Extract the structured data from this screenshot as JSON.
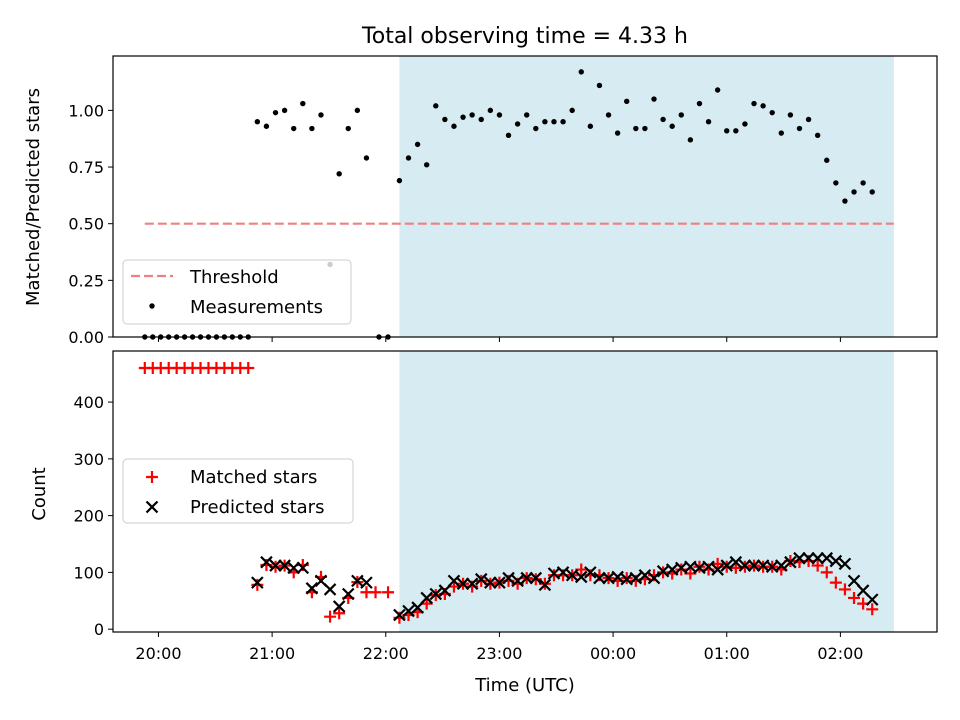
{
  "colors": {
    "shade": "#add8e6",
    "threshold": "#f08080",
    "matched": "#ff0000",
    "predicted": "#000000",
    "measurement": "#000000"
  },
  "chart_data": [
    {
      "type": "scatter",
      "title": "Total observing time = 4.33 h",
      "ylabel": "Matched/Predicted stars",
      "xlim": [
        -0.4,
        6.85
      ],
      "ylim": [
        0.0,
        1.24
      ],
      "yticks": [
        "0.00",
        "0.25",
        "0.50",
        "0.75",
        "1.00"
      ],
      "shaded_span_x": [
        2.12,
        6.47
      ],
      "threshold": {
        "name": "Threshold",
        "y": 0.5,
        "x": [
          -0.12,
          6.47
        ]
      },
      "legend": "lower-left",
      "series": [
        {
          "name": "Measurements",
          "points": [
            [
              -0.12,
              0
            ],
            [
              -0.05,
              0
            ],
            [
              0.02,
              0
            ],
            [
              0.09,
              0
            ],
            [
              0.16,
              0
            ],
            [
              0.23,
              0
            ],
            [
              0.3,
              0
            ],
            [
              0.37,
              0
            ],
            [
              0.44,
              0
            ],
            [
              0.51,
              0
            ],
            [
              0.58,
              0
            ],
            [
              0.65,
              0
            ],
            [
              0.72,
              0
            ],
            [
              0.79,
              0
            ],
            [
              0.87,
              0.95
            ],
            [
              0.95,
              0.93
            ],
            [
              1.03,
              0.99
            ],
            [
              1.11,
              1.0
            ],
            [
              1.19,
              0.92
            ],
            [
              1.27,
              1.03
            ],
            [
              1.35,
              0.92
            ],
            [
              1.43,
              0.98
            ],
            [
              1.51,
              0.32
            ],
            [
              1.59,
              0.72
            ],
            [
              1.67,
              0.92
            ],
            [
              1.75,
              1.0
            ],
            [
              1.83,
              0.79
            ],
            [
              1.94,
              0
            ],
            [
              2.02,
              0
            ],
            [
              2.12,
              0.69
            ],
            [
              2.2,
              0.79
            ],
            [
              2.28,
              0.85
            ],
            [
              2.36,
              0.76
            ],
            [
              2.44,
              1.02
            ],
            [
              2.52,
              0.96
            ],
            [
              2.6,
              0.93
            ],
            [
              2.68,
              0.97
            ],
            [
              2.76,
              0.98
            ],
            [
              2.84,
              0.96
            ],
            [
              2.92,
              1.0
            ],
            [
              3.0,
              0.98
            ],
            [
              3.08,
              0.89
            ],
            [
              3.16,
              0.94
            ],
            [
              3.24,
              0.98
            ],
            [
              3.32,
              0.92
            ],
            [
              3.4,
              0.95
            ],
            [
              3.48,
              0.95
            ],
            [
              3.56,
              0.95
            ],
            [
              3.64,
              1.0
            ],
            [
              3.72,
              1.17
            ],
            [
              3.8,
              0.93
            ],
            [
              3.88,
              1.11
            ],
            [
              3.96,
              0.98
            ],
            [
              4.04,
              0.9
            ],
            [
              4.12,
              1.04
            ],
            [
              4.2,
              0.92
            ],
            [
              4.28,
              0.92
            ],
            [
              4.36,
              1.05
            ],
            [
              4.44,
              0.96
            ],
            [
              4.52,
              0.93
            ],
            [
              4.6,
              0.98
            ],
            [
              4.68,
              0.87
            ],
            [
              4.76,
              1.03
            ],
            [
              4.84,
              0.95
            ],
            [
              4.92,
              1.09
            ],
            [
              5.0,
              0.91
            ],
            [
              5.08,
              0.91
            ],
            [
              5.16,
              0.94
            ],
            [
              5.24,
              1.03
            ],
            [
              5.32,
              1.02
            ],
            [
              5.4,
              0.99
            ],
            [
              5.48,
              0.9
            ],
            [
              5.56,
              0.98
            ],
            [
              5.64,
              0.92
            ],
            [
              5.72,
              0.96
            ],
            [
              5.8,
              0.89
            ],
            [
              5.88,
              0.78
            ],
            [
              5.96,
              0.68
            ],
            [
              6.04,
              0.6
            ],
            [
              6.12,
              0.64
            ],
            [
              6.2,
              0.68
            ],
            [
              6.28,
              0.64
            ]
          ]
        }
      ]
    },
    {
      "type": "scatter",
      "ylabel": "Count",
      "xlabel": "Time (UTC)",
      "xlim": [
        -0.4,
        6.85
      ],
      "ylim": [
        -5,
        490
      ],
      "yticks": [
        "0",
        "100",
        "200",
        "300",
        "400"
      ],
      "xtick_values": [
        0,
        1,
        2,
        3,
        4,
        5,
        6
      ],
      "categories": [
        "20:00",
        "21:00",
        "22:00",
        "23:00",
        "00:00",
        "01:00",
        "02:00"
      ],
      "shaded_span_x": [
        2.12,
        6.47
      ],
      "legend": "center-left",
      "series": [
        {
          "name": "Matched stars",
          "points": [
            [
              -0.12,
              460
            ],
            [
              -0.05,
              460
            ],
            [
              0.02,
              460
            ],
            [
              0.09,
              460
            ],
            [
              0.16,
              460
            ],
            [
              0.23,
              460
            ],
            [
              0.3,
              460
            ],
            [
              0.37,
              460
            ],
            [
              0.44,
              460
            ],
            [
              0.51,
              460
            ],
            [
              0.58,
              460
            ],
            [
              0.65,
              460
            ],
            [
              0.72,
              460
            ],
            [
              0.79,
              460
            ],
            [
              0.87,
              78
            ],
            [
              0.95,
              113
            ],
            [
              1.03,
              110
            ],
            [
              1.11,
              112
            ],
            [
              1.19,
              100
            ],
            [
              1.27,
              113
            ],
            [
              1.35,
              65
            ],
            [
              1.43,
              92
            ],
            [
              1.51,
              22
            ],
            [
              1.59,
              28
            ],
            [
              1.67,
              55
            ],
            [
              1.75,
              83
            ],
            [
              1.83,
              65
            ],
            [
              1.91,
              65
            ],
            [
              2.02,
              65
            ],
            [
              2.12,
              20
            ],
            [
              2.2,
              25
            ],
            [
              2.28,
              30
            ],
            [
              2.36,
              45
            ],
            [
              2.44,
              60
            ],
            [
              2.52,
              62
            ],
            [
              2.6,
              75
            ],
            [
              2.68,
              80
            ],
            [
              2.76,
              75
            ],
            [
              2.84,
              85
            ],
            [
              2.92,
              80
            ],
            [
              3.0,
              82
            ],
            [
              3.08,
              85
            ],
            [
              3.16,
              80
            ],
            [
              3.24,
              90
            ],
            [
              3.32,
              88
            ],
            [
              3.4,
              80
            ],
            [
              3.48,
              95
            ],
            [
              3.56,
              95
            ],
            [
              3.64,
              95
            ],
            [
              3.72,
              105
            ],
            [
              3.8,
              95
            ],
            [
              3.88,
              95
            ],
            [
              3.96,
              90
            ],
            [
              4.04,
              85
            ],
            [
              4.12,
              90
            ],
            [
              4.2,
              85
            ],
            [
              4.28,
              88
            ],
            [
              4.36,
              95
            ],
            [
              4.44,
              100
            ],
            [
              4.52,
              98
            ],
            [
              4.6,
              105
            ],
            [
              4.68,
              98
            ],
            [
              4.76,
              110
            ],
            [
              4.84,
              105
            ],
            [
              4.92,
              115
            ],
            [
              5.0,
              110
            ],
            [
              5.08,
              108
            ],
            [
              5.16,
              110
            ],
            [
              5.24,
              112
            ],
            [
              5.32,
              110
            ],
            [
              5.4,
              110
            ],
            [
              5.48,
              105
            ],
            [
              5.56,
              120
            ],
            [
              5.64,
              118
            ],
            [
              5.72,
              120
            ],
            [
              5.8,
              112
            ],
            [
              5.88,
              100
            ],
            [
              5.96,
              82
            ],
            [
              6.04,
              70
            ],
            [
              6.12,
              55
            ],
            [
              6.2,
              45
            ],
            [
              6.28,
              35
            ]
          ]
        },
        {
          "name": "Predicted stars",
          "points": [
            [
              0.87,
              82
            ],
            [
              0.95,
              118
            ],
            [
              1.03,
              112
            ],
            [
              1.11,
              112
            ],
            [
              1.19,
              108
            ],
            [
              1.27,
              108
            ],
            [
              1.35,
              72
            ],
            [
              1.43,
              85
            ],
            [
              1.51,
              70
            ],
            [
              1.59,
              40
            ],
            [
              1.67,
              62
            ],
            [
              1.75,
              85
            ],
            [
              1.83,
              82
            ],
            [
              2.12,
              25
            ],
            [
              2.2,
              32
            ],
            [
              2.28,
              38
            ],
            [
              2.36,
              55
            ],
            [
              2.44,
              62
            ],
            [
              2.52,
              68
            ],
            [
              2.6,
              85
            ],
            [
              2.68,
              80
            ],
            [
              2.76,
              80
            ],
            [
              2.84,
              88
            ],
            [
              2.92,
              82
            ],
            [
              3.0,
              82
            ],
            [
              3.08,
              90
            ],
            [
              3.16,
              85
            ],
            [
              3.24,
              90
            ],
            [
              3.32,
              90
            ],
            [
              3.4,
              78
            ],
            [
              3.48,
              98
            ],
            [
              3.56,
              100
            ],
            [
              3.64,
              95
            ],
            [
              3.72,
              92
            ],
            [
              3.8,
              100
            ],
            [
              3.88,
              90
            ],
            [
              3.96,
              90
            ],
            [
              4.04,
              92
            ],
            [
              4.12,
              88
            ],
            [
              4.2,
              90
            ],
            [
              4.28,
              95
            ],
            [
              4.36,
              90
            ],
            [
              4.44,
              102
            ],
            [
              4.52,
              105
            ],
            [
              4.6,
              108
            ],
            [
              4.68,
              110
            ],
            [
              4.76,
              108
            ],
            [
              4.84,
              110
            ],
            [
              4.92,
              105
            ],
            [
              5.0,
              112
            ],
            [
              5.08,
              118
            ],
            [
              5.16,
              112
            ],
            [
              5.24,
              112
            ],
            [
              5.32,
              112
            ],
            [
              5.4,
              110
            ],
            [
              5.48,
              112
            ],
            [
              5.56,
              118
            ],
            [
              5.64,
              125
            ],
            [
              5.72,
              125
            ],
            [
              5.8,
              125
            ],
            [
              5.88,
              125
            ],
            [
              5.96,
              120
            ],
            [
              6.04,
              115
            ],
            [
              6.12,
              85
            ],
            [
              6.2,
              68
            ],
            [
              6.28,
              52
            ]
          ]
        }
      ]
    }
  ]
}
